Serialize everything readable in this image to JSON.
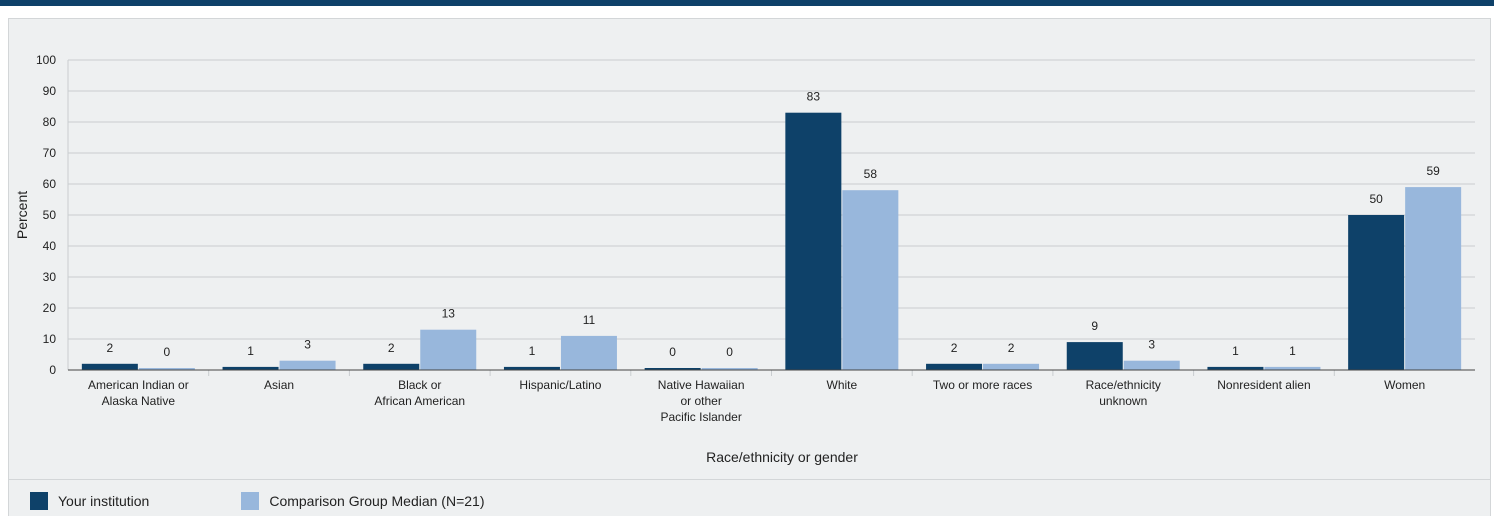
{
  "colors": {
    "series_1": "#0e4169",
    "series_2": "#98b7dc",
    "grid": "#c9cdd0",
    "axis": "#444444"
  },
  "chart_data": {
    "type": "bar",
    "xlabel": "Race/ethnicity or gender",
    "ylabel": "Percent",
    "ylim": [
      0,
      100
    ],
    "yticks": [
      0,
      10,
      20,
      30,
      40,
      50,
      60,
      70,
      80,
      90,
      100
    ],
    "grid": true,
    "legend_position": "bottom-left",
    "categories": [
      "American Indian or Alaska Native",
      "Asian",
      "Black or African American",
      "Hispanic/Latino",
      "Native Hawaiian or other Pacific Islander",
      "White",
      "Two or more races",
      "Race/ethnicity unknown",
      "Nonresident alien",
      "Women"
    ],
    "category_label_lines": [
      [
        "American Indian or",
        "Alaska Native"
      ],
      [
        "Asian"
      ],
      [
        "Black or",
        "African American"
      ],
      [
        "Hispanic/Latino"
      ],
      [
        "Native Hawaiian",
        "or other",
        "Pacific Islander"
      ],
      [
        "White"
      ],
      [
        "Two or more races"
      ],
      [
        "Race/ethnicity",
        "unknown"
      ],
      [
        "Nonresident alien"
      ],
      [
        "Women"
      ]
    ],
    "series": [
      {
        "name": "Your institution",
        "values": [
          2,
          1,
          2,
          1,
          0,
          83,
          2,
          9,
          1,
          50
        ]
      },
      {
        "name": "Comparison Group Median (N=21)",
        "values": [
          0,
          3,
          13,
          11,
          0,
          58,
          2,
          3,
          1,
          59
        ]
      }
    ]
  }
}
